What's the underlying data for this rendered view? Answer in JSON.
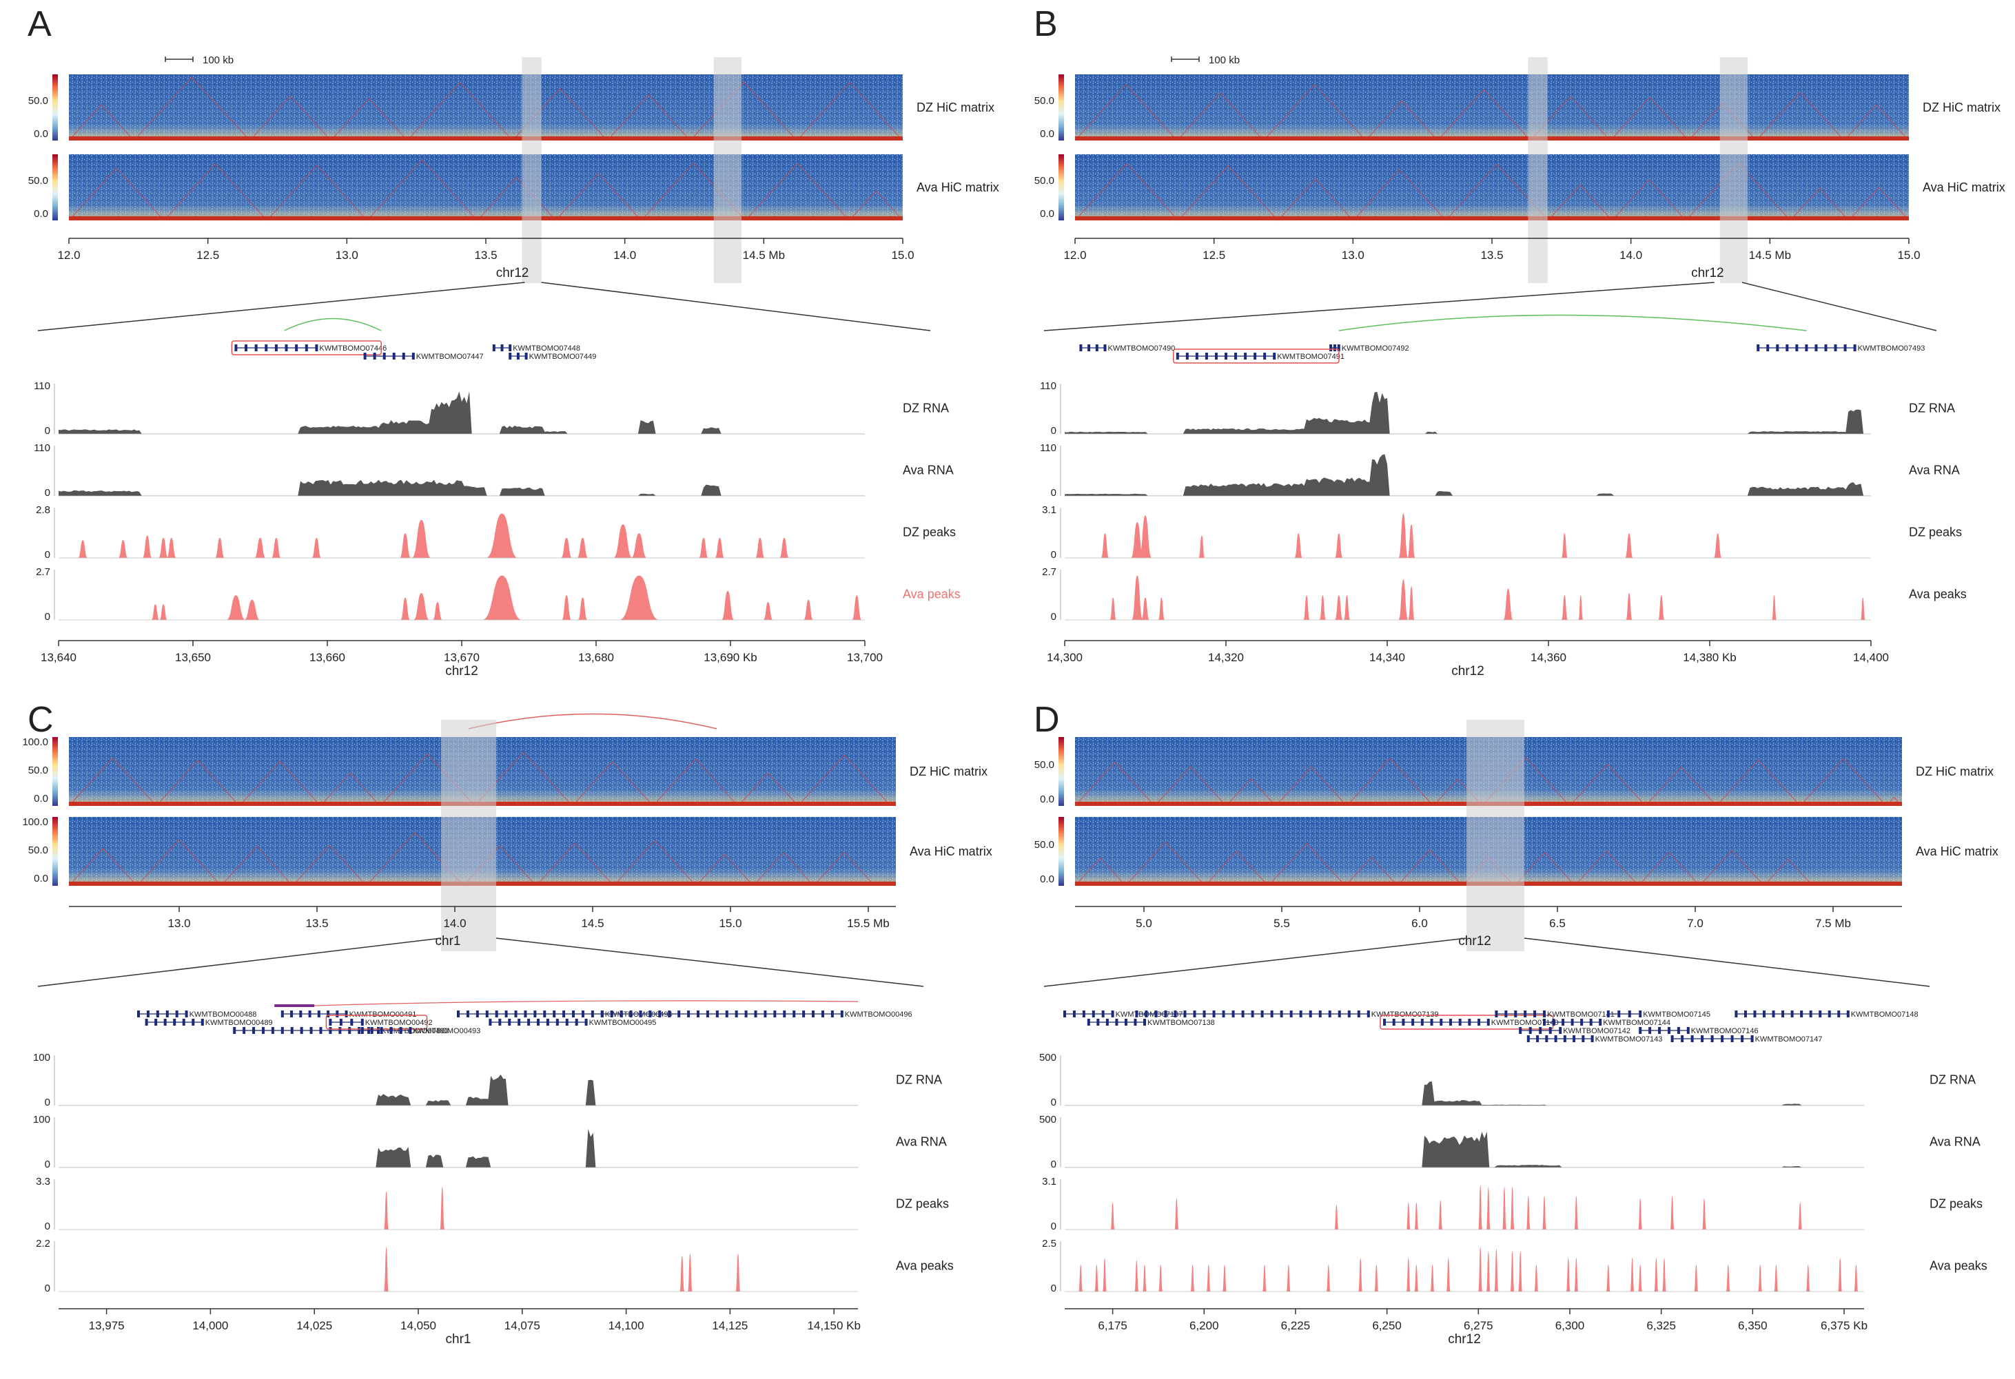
{
  "figure": {
    "panels": [
      {
        "letter": "A",
        "hic": {
          "scalebar_label": "100 kb",
          "tracks": [
            {
              "label": "DZ HiC matrix",
              "cbar_ticks": [
                "50.0",
                "0.0"
              ]
            },
            {
              "label": "Ava HiC matrix",
              "cbar_ticks": [
                "50.0",
                "0.0"
              ]
            }
          ],
          "axis_ticks": [
            "12.0",
            "12.5",
            "13.0",
            "13.5",
            "14.0",
            "14.5 Mb",
            "15.0"
          ],
          "axis_range": [
            12.0,
            15.0
          ],
          "chrom": "chr12",
          "highlights": [
            [
              13.63,
              13.7
            ],
            [
              14.32,
              14.42
            ]
          ],
          "zoom_from": [
            13.64,
            13.7
          ]
        },
        "genes": {
          "names": [
            "KWMTBOMO07446",
            "KWMTBOMO07448",
            "KWMTBOMO07447",
            "KWMTBOMO07449"
          ],
          "highlighted": "KWMTBOMO07446"
        },
        "tracks": [
          {
            "label": "DZ RNA",
            "kind": "rna",
            "ymax": "110",
            "ymin": "0"
          },
          {
            "label": "Ava RNA",
            "kind": "rna",
            "ymax": "110",
            "ymin": "0"
          },
          {
            "label": "DZ peaks",
            "kind": "peaks",
            "ymax": "2.8",
            "ymin": "0"
          },
          {
            "label": "Ava peaks",
            "kind": "peaks",
            "ymax": "2.7",
            "ymin": "0",
            "label_color": "#f07070"
          }
        ],
        "bottom_axis": {
          "ticks": [
            "13,640",
            "13,650",
            "13,660",
            "13,670",
            "13,680",
            "13,690 Kb",
            "13,700"
          ],
          "chrom": "chr12"
        }
      },
      {
        "letter": "B",
        "hic": {
          "scalebar_label": "100 kb",
          "tracks": [
            {
              "label": "DZ HiC matrix",
              "cbar_ticks": [
                "50.0",
                "0.0"
              ]
            },
            {
              "label": "Ava HiC matrix",
              "cbar_ticks": [
                "50.0",
                "0.0"
              ]
            }
          ],
          "axis_ticks": [
            "12.0",
            "12.5",
            "13.0",
            "13.5",
            "14.0",
            "14.5 Mb",
            "15.0"
          ],
          "axis_range": [
            12.0,
            15.0
          ],
          "chrom": "chr12",
          "highlights": [
            [
              13.63,
              13.7
            ],
            [
              14.32,
              14.42
            ]
          ],
          "zoom_from": [
            14.3,
            14.4
          ]
        },
        "genes": {
          "names": [
            "KWMTBOMO07490",
            "KWMTBOMO07492",
            "KWMTBOMO07493",
            "KWMTBOMO07491"
          ],
          "highlighted": "KWMTBOMO07491"
        },
        "tracks": [
          {
            "label": "DZ RNA",
            "kind": "rna",
            "ymax": "110",
            "ymin": "0"
          },
          {
            "label": "Ava RNA",
            "kind": "rna",
            "ymax": "110",
            "ymin": "0"
          },
          {
            "label": "DZ peaks",
            "kind": "peaks",
            "ymax": "3.1",
            "ymin": "0"
          },
          {
            "label": "Ava peaks",
            "kind": "peaks",
            "ymax": "2.7",
            "ymin": "0"
          }
        ],
        "bottom_axis": {
          "ticks": [
            "14,300",
            "14,320",
            "14,340",
            "14,360",
            "14,380 Kb",
            "14,400"
          ],
          "chrom": "chr12"
        }
      },
      {
        "letter": "C",
        "hic": {
          "scalebar_label": "",
          "tracks": [
            {
              "label": "DZ HiC matrix",
              "cbar_ticks": [
                "100.0",
                "50.0",
                "0.0"
              ]
            },
            {
              "label": "Ava HiC matrix",
              "cbar_ticks": [
                "100.0",
                "50.0",
                "0.0"
              ]
            }
          ],
          "axis_ticks": [
            "13.0",
            "13.5",
            "14.0",
            "14.5",
            "15.0",
            "15.5 Mb"
          ],
          "axis_range": [
            12.6,
            15.6
          ],
          "chrom": "chr1",
          "highlights": [
            [
              13.95,
              14.15
            ]
          ],
          "zoom_from": [
            13.95,
            14.15
          ]
        },
        "genes": {
          "names": [
            "KWMTBOMO00488",
            "KWMTBOMO00489",
            "KWMTBOMO00490",
            "KWMTBOMO00491",
            "KWMTBOMO00492",
            "KWMTBOMO00493",
            "KWMTBOMO00494",
            "KWMTBOMO00495",
            "KWMTBOMO00496"
          ],
          "highlighted": "KWMTBOMO00492"
        },
        "tracks": [
          {
            "label": "DZ RNA",
            "kind": "rna",
            "ymax": "100",
            "ymin": "0"
          },
          {
            "label": "Ava RNA",
            "kind": "rna",
            "ymax": "100",
            "ymin": "0"
          },
          {
            "label": "DZ peaks",
            "kind": "peaks",
            "ymax": "3.3",
            "ymin": "0"
          },
          {
            "label": "Ava peaks",
            "kind": "peaks",
            "ymax": "2.2",
            "ymin": "0"
          }
        ],
        "bottom_axis": {
          "ticks": [
            "13,975",
            "14,000",
            "14,025",
            "14,050",
            "14,075",
            "14,100",
            "14,125",
            "14,150 Kb"
          ],
          "chrom": "chr1"
        }
      },
      {
        "letter": "D",
        "hic": {
          "scalebar_label": "",
          "tracks": [
            {
              "label": "DZ HiC matrix",
              "cbar_ticks": [
                "50.0",
                "0.0"
              ]
            },
            {
              "label": "Ava HiC matrix",
              "cbar_ticks": [
                "50.0",
                "0.0"
              ]
            }
          ],
          "axis_ticks": [
            "5.0",
            "5.5",
            "6.0",
            "6.5",
            "7.0",
            "7.5 Mb"
          ],
          "axis_range": [
            4.75,
            7.75
          ],
          "chrom": "chr12",
          "highlights": [
            [
              6.17,
              6.38
            ]
          ],
          "zoom_from": [
            6.17,
            6.38
          ]
        },
        "genes": {
          "names": [
            "KWMTBOMO07137",
            "KWMTBOMO07138",
            "KWMTBOMO07139",
            "KWMTBOMO07140",
            "KWMTBOMO07141",
            "KWMTBOMO07142",
            "KWMTBOMO07143",
            "KWMTBOMO07144",
            "KWMTBOMO07145",
            "KWMTBOMO07146",
            "KWMTBOMO07147",
            "KWMTBOMO07148"
          ],
          "highlighted": "KWMTBOMO07140"
        },
        "tracks": [
          {
            "label": "DZ RNA",
            "kind": "rna",
            "ymax": "500",
            "ymin": "0"
          },
          {
            "label": "Ava RNA",
            "kind": "rna",
            "ymax": "500",
            "ymin": "0"
          },
          {
            "label": "DZ peaks",
            "kind": "peaks",
            "ymax": "3.1",
            "ymin": "0"
          },
          {
            "label": "Ava peaks",
            "kind": "peaks",
            "ymax": "2.5",
            "ymin": "0"
          }
        ],
        "bottom_axis": {
          "ticks": [
            "6,175",
            "6,200",
            "6,225",
            "6,250",
            "6,275",
            "6,300",
            "6,325",
            "6,350",
            "6,375 Kb"
          ],
          "chrom": "chr12"
        }
      }
    ]
  },
  "colors": {
    "hic_blue": "#2a58a8",
    "hic_diag": "#c8301f",
    "tad": "#d04040",
    "rna": "#555555",
    "peak": "#f48080",
    "highlight": "#cfcfcf",
    "gene": "#1c2a7a",
    "gene_box": "#e05050",
    "loop_green": "#5bbf5b",
    "loop_red": "#e06060"
  }
}
